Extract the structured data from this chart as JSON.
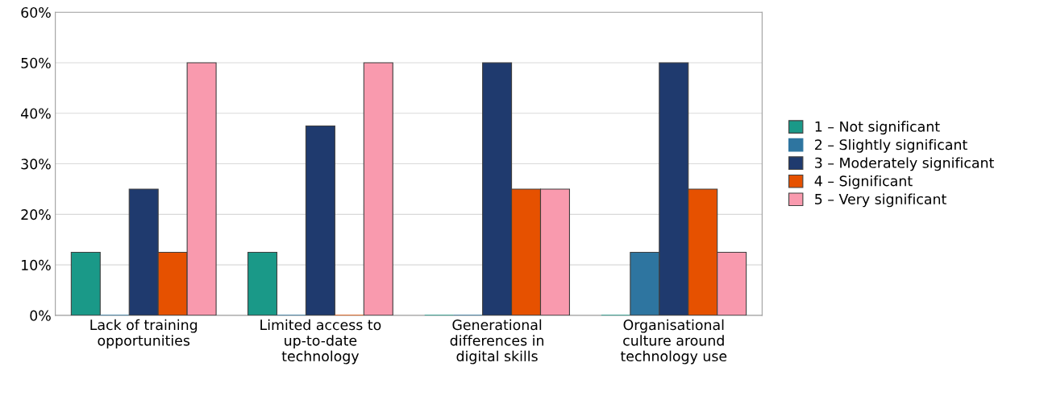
{
  "chart_data": {
    "type": "bar",
    "categories": [
      "Lack of training\nopportunities",
      "Limited access to\nup-to-date\ntechnology",
      "Generational\ndifferences in\ndigital skills",
      "Organisational\nculture around\ntechnology use"
    ],
    "series": [
      {
        "name": "1 – Not significant",
        "color": "#1a9988",
        "values": [
          12.5,
          12.5,
          0,
          0
        ]
      },
      {
        "name": "2 – Slightly significant",
        "color": "#2e75a0",
        "values": [
          0,
          0,
          0,
          12.5
        ]
      },
      {
        "name": "3 – Moderately significant",
        "color": "#1f3a6e",
        "values": [
          25,
          37.5,
          50,
          50
        ]
      },
      {
        "name": "4 – Significant",
        "color": "#e65100",
        "values": [
          12.5,
          0,
          25,
          25
        ]
      },
      {
        "name": "5 – Very significant",
        "color": "#f99aae",
        "values": [
          50,
          50,
          25,
          12.5
        ]
      }
    ],
    "ylim": [
      0,
      60
    ],
    "yticks": [
      {
        "value": 0,
        "label": "0%"
      },
      {
        "value": 10,
        "label": "10%"
      },
      {
        "value": 20,
        "label": "20%"
      },
      {
        "value": 30,
        "label": "30%"
      },
      {
        "value": 40,
        "label": "40%"
      },
      {
        "value": 50,
        "label": "50%"
      },
      {
        "value": 60,
        "label": "60%"
      }
    ],
    "grid": "y",
    "legend": "right"
  }
}
